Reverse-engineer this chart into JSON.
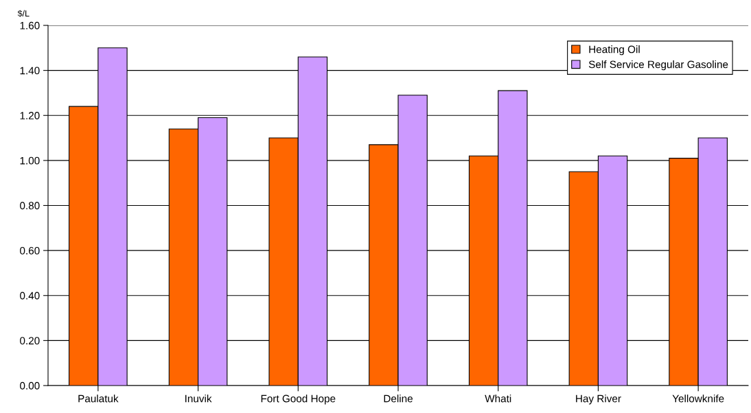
{
  "chart_data": {
    "type": "bar",
    "ylabel": "$/L",
    "categories": [
      "Paulatuk",
      "Inuvik",
      "Fort Good Hope",
      "Deline",
      "Whati",
      "Hay River",
      "Yellowknife"
    ],
    "series": [
      {
        "name": "Heating Oil",
        "color": "#ff6600",
        "values": [
          1.24,
          1.14,
          1.1,
          1.07,
          1.02,
          0.95,
          1.01
        ]
      },
      {
        "name": "Self Service Regular Gasoline",
        "color": "#cc99ff",
        "values": [
          1.5,
          1.19,
          1.46,
          1.29,
          1.31,
          1.02,
          1.1
        ]
      }
    ],
    "ylim": [
      0,
      1.6
    ],
    "yticks": [
      {
        "value": 0,
        "label": "0.00"
      },
      {
        "value": 0.2,
        "label": "0.20"
      },
      {
        "value": 0.4,
        "label": "0.40"
      },
      {
        "value": 0.6,
        "label": "0.60"
      },
      {
        "value": 0.8,
        "label": "0.80"
      },
      {
        "value": 1.0,
        "label": "1.00"
      },
      {
        "value": 1.2,
        "label": "1.20"
      },
      {
        "value": 1.4,
        "label": "1.40"
      },
      {
        "value": 1.6,
        "label": "1.60"
      }
    ],
    "grid": "y",
    "legend": "top right"
  }
}
